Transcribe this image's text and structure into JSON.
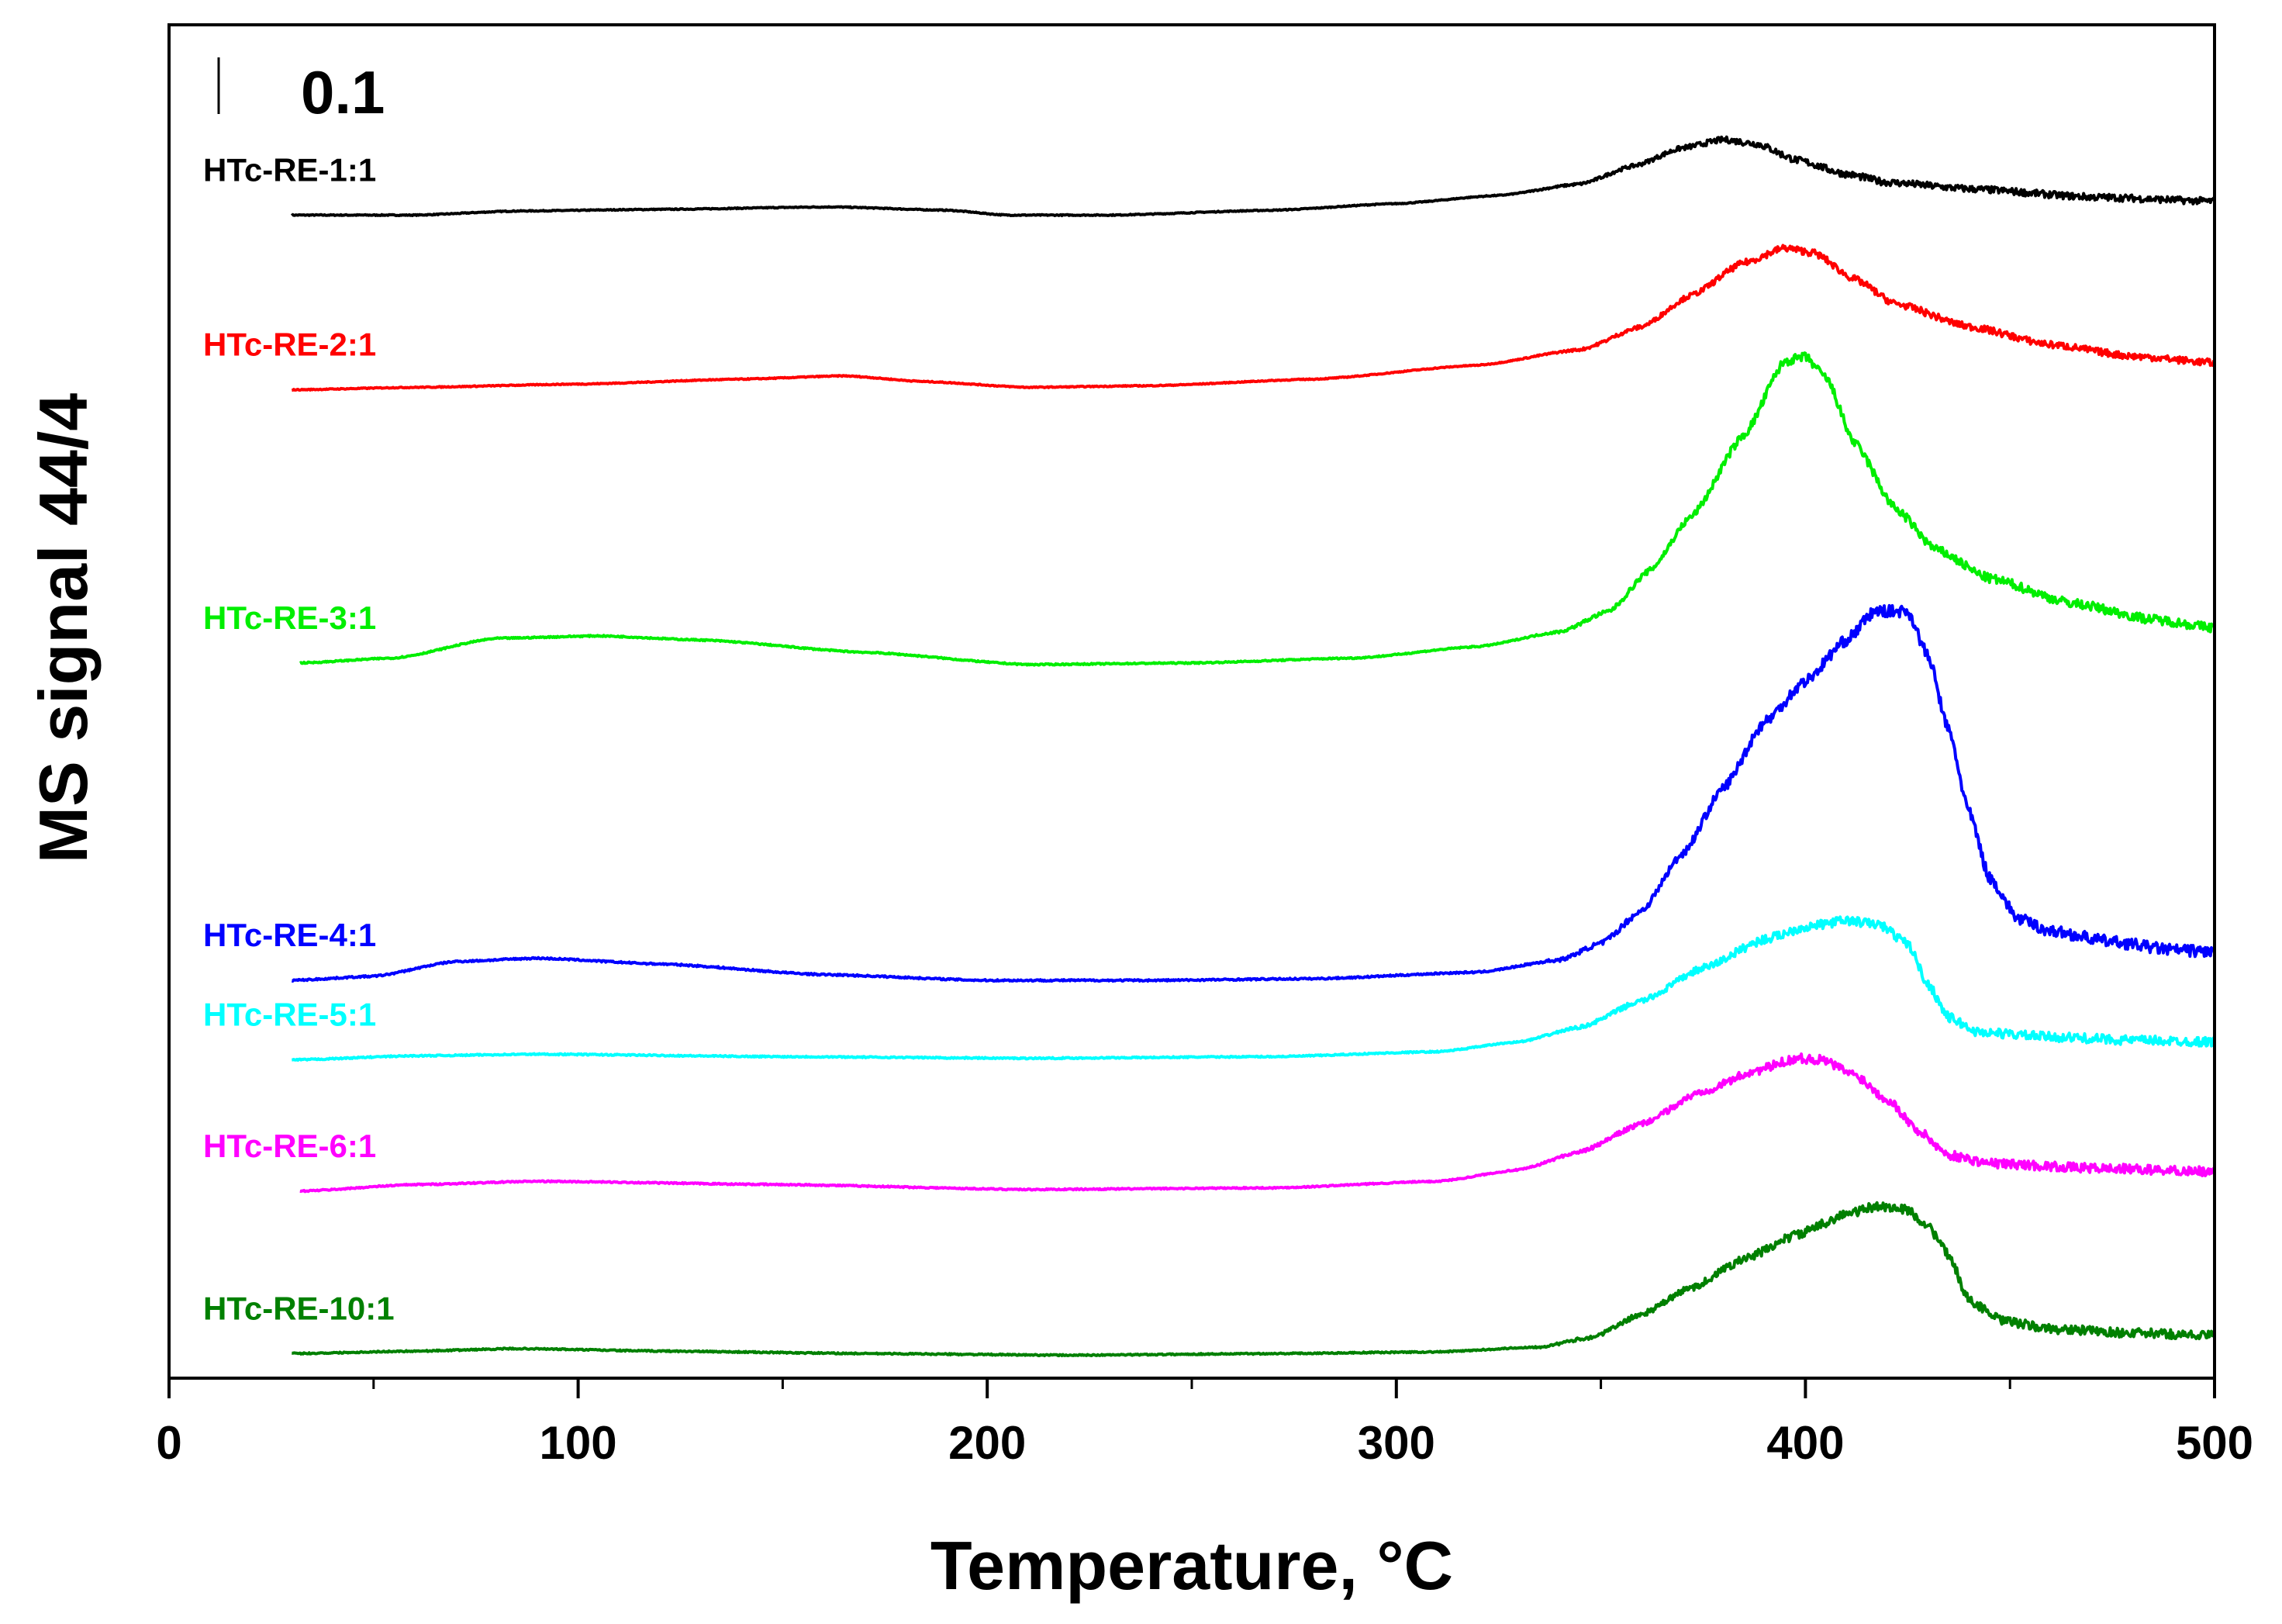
{
  "chart_data": {
    "type": "line",
    "title": "",
    "xlabel": "Temperature, °C",
    "ylabel": "MS signal 44/4",
    "xlim": [
      0,
      500
    ],
    "x_ticks": [
      0,
      100,
      200,
      300,
      400,
      500
    ],
    "x_tick_labels": [
      "0",
      "100",
      "200",
      "300",
      "400",
      "500"
    ],
    "ylim": [
      0,
      1.65
    ],
    "y_ticks_shown": false,
    "scale_bar": {
      "label": "0.1",
      "value": 0.1
    },
    "grid": false,
    "legend": "inline labels at left of each trace",
    "series": [
      {
        "name": "HTc-RE-1:1",
        "color": "#000000",
        "noise": 0.003,
        "points": [
          [
            30,
            1.418
          ],
          [
            60,
            1.418
          ],
          [
            85,
            1.423
          ],
          [
            120,
            1.425
          ],
          [
            162,
            1.428
          ],
          [
            190,
            1.424
          ],
          [
            205,
            1.418
          ],
          [
            230,
            1.418
          ],
          [
            270,
            1.424
          ],
          [
            300,
            1.432
          ],
          [
            325,
            1.442
          ],
          [
            345,
            1.456
          ],
          [
            358,
            1.478
          ],
          [
            370,
            1.5
          ],
          [
            380,
            1.51
          ],
          [
            388,
            1.505
          ],
          [
            398,
            1.485
          ],
          [
            410,
            1.468
          ],
          [
            420,
            1.458
          ],
          [
            440,
            1.45
          ],
          [
            470,
            1.44
          ],
          [
            500,
            1.435
          ]
        ]
      },
      {
        "name": "HTc-RE-2:1",
        "color": "#ff0000",
        "noise": 0.003,
        "points": [
          [
            30,
            1.205
          ],
          [
            60,
            1.208
          ],
          [
            100,
            1.212
          ],
          [
            140,
            1.218
          ],
          [
            165,
            1.222
          ],
          [
            185,
            1.215
          ],
          [
            210,
            1.208
          ],
          [
            240,
            1.21
          ],
          [
            280,
            1.218
          ],
          [
            320,
            1.235
          ],
          [
            345,
            1.254
          ],
          [
            360,
            1.282
          ],
          [
            372,
            1.32
          ],
          [
            385,
            1.36
          ],
          [
            395,
            1.378
          ],
          [
            402,
            1.372
          ],
          [
            412,
            1.34
          ],
          [
            422,
            1.31
          ],
          [
            440,
            1.282
          ],
          [
            460,
            1.26
          ],
          [
            480,
            1.246
          ],
          [
            500,
            1.238
          ]
        ]
      },
      {
        "name": "HTc-RE-3:1",
        "color": "#00ee00",
        "noise": 0.004,
        "points": [
          [
            32,
            0.872
          ],
          [
            55,
            0.878
          ],
          [
            80,
            0.902
          ],
          [
            105,
            0.905
          ],
          [
            130,
            0.9
          ],
          [
            170,
            0.885
          ],
          [
            210,
            0.87
          ],
          [
            250,
            0.872
          ],
          [
            290,
            0.878
          ],
          [
            320,
            0.892
          ],
          [
            340,
            0.91
          ],
          [
            352,
            0.935
          ],
          [
            362,
            0.985
          ],
          [
            372,
            1.05
          ],
          [
            385,
            1.15
          ],
          [
            395,
            1.24
          ],
          [
            400,
            1.245
          ],
          [
            405,
            1.22
          ],
          [
            412,
            1.14
          ],
          [
            422,
            1.06
          ],
          [
            432,
            1.01
          ],
          [
            445,
            0.975
          ],
          [
            465,
            0.945
          ],
          [
            485,
            0.925
          ],
          [
            500,
            0.915
          ]
        ]
      },
      {
        "name": "HTc-RE-4:1",
        "color": "#0000ff",
        "noise": 0.005,
        "points": [
          [
            30,
            0.485
          ],
          [
            50,
            0.49
          ],
          [
            70,
            0.508
          ],
          [
            90,
            0.512
          ],
          [
            120,
            0.505
          ],
          [
            160,
            0.492
          ],
          [
            200,
            0.485
          ],
          [
            240,
            0.485
          ],
          [
            280,
            0.487
          ],
          [
            320,
            0.495
          ],
          [
            340,
            0.51
          ],
          [
            350,
            0.53
          ],
          [
            360,
            0.57
          ],
          [
            370,
            0.64
          ],
          [
            380,
            0.72
          ],
          [
            390,
            0.8
          ],
          [
            400,
            0.85
          ],
          [
            410,
            0.9
          ],
          [
            417,
            0.935
          ],
          [
            425,
            0.935
          ],
          [
            430,
            0.88
          ],
          [
            435,
            0.79
          ],
          [
            440,
            0.69
          ],
          [
            445,
            0.61
          ],
          [
            452,
            0.56
          ],
          [
            460,
            0.545
          ],
          [
            475,
            0.532
          ],
          [
            490,
            0.522
          ],
          [
            500,
            0.52
          ]
        ]
      },
      {
        "name": "HTc-RE-5:1",
        "color": "#00ffff",
        "noise": 0.004,
        "points": [
          [
            30,
            0.388
          ],
          [
            60,
            0.393
          ],
          [
            90,
            0.395
          ],
          [
            150,
            0.392
          ],
          [
            210,
            0.39
          ],
          [
            270,
            0.392
          ],
          [
            310,
            0.398
          ],
          [
            330,
            0.41
          ],
          [
            345,
            0.428
          ],
          [
            360,
            0.46
          ],
          [
            375,
            0.5
          ],
          [
            390,
            0.535
          ],
          [
            400,
            0.55
          ],
          [
            410,
            0.558
          ],
          [
            418,
            0.553
          ],
          [
            425,
            0.53
          ],
          [
            430,
            0.48
          ],
          [
            435,
            0.44
          ],
          [
            442,
            0.422
          ],
          [
            460,
            0.416
          ],
          [
            480,
            0.412
          ],
          [
            500,
            0.41
          ]
        ]
      },
      {
        "name": "HTc-RE-6:1",
        "color": "#ff00ff",
        "noise": 0.004,
        "points": [
          [
            32,
            0.228
          ],
          [
            60,
            0.236
          ],
          [
            90,
            0.24
          ],
          [
            150,
            0.236
          ],
          [
            210,
            0.23
          ],
          [
            270,
            0.232
          ],
          [
            310,
            0.24
          ],
          [
            330,
            0.254
          ],
          [
            345,
            0.276
          ],
          [
            360,
            0.31
          ],
          [
            375,
            0.35
          ],
          [
            388,
            0.375
          ],
          [
            398,
            0.39
          ],
          [
            404,
            0.388
          ],
          [
            412,
            0.37
          ],
          [
            420,
            0.34
          ],
          [
            428,
            0.3
          ],
          [
            435,
            0.272
          ],
          [
            445,
            0.262
          ],
          [
            470,
            0.256
          ],
          [
            500,
            0.252
          ]
        ]
      },
      {
        "name": "HTc-RE-10:1",
        "color": "#008000",
        "noise": 0.004,
        "points": [
          [
            30,
            0.03
          ],
          [
            60,
            0.033
          ],
          [
            85,
            0.036
          ],
          [
            120,
            0.033
          ],
          [
            170,
            0.03
          ],
          [
            220,
            0.028
          ],
          [
            270,
            0.03
          ],
          [
            310,
            0.032
          ],
          [
            335,
            0.038
          ],
          [
            348,
            0.05
          ],
          [
            360,
            0.078
          ],
          [
            372,
            0.11
          ],
          [
            385,
            0.145
          ],
          [
            398,
            0.175
          ],
          [
            410,
            0.2
          ],
          [
            418,
            0.21
          ],
          [
            425,
            0.205
          ],
          [
            430,
            0.185
          ],
          [
            435,
            0.15
          ],
          [
            440,
            0.095
          ],
          [
            448,
            0.07
          ],
          [
            460,
            0.06
          ],
          [
            480,
            0.055
          ],
          [
            500,
            0.052
          ]
        ]
      }
    ]
  }
}
